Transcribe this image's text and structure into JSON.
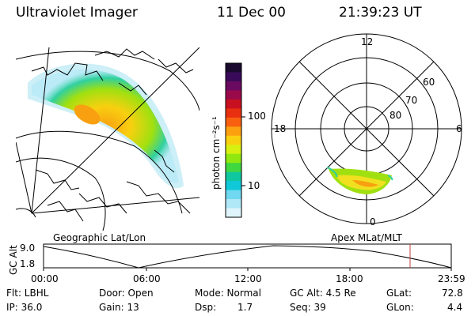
{
  "header": {
    "title": "Ultraviolet Imager",
    "date": "11 Dec 00",
    "time": "21:39:23 UT"
  },
  "colorbar": {
    "unit_label": "photon cm⁻²s⁻¹",
    "ticks": [
      "100",
      "10"
    ],
    "colors": [
      "#1a0a2e",
      "#3a0a5a",
      "#6a0a60",
      "#9a0a4a",
      "#c81020",
      "#e83010",
      "#f86010",
      "#fca010",
      "#f8d010",
      "#d8f010",
      "#90e810",
      "#40d840",
      "#10c8a0",
      "#10c8d8",
      "#70d8f0",
      "#b0e8f8",
      "#e0f4fc"
    ]
  },
  "panels": {
    "left_label": "Geographic Lat/Lon",
    "right_label": "Apex MLat/MLT"
  },
  "polar": {
    "clock_labels": {
      "top": "12",
      "left": "18",
      "right": "6",
      "bottom": "0"
    },
    "lat_labels": [
      "60",
      "70",
      "80"
    ]
  },
  "altitude": {
    "axis_label": "GC Alt",
    "y_ticks": [
      "9.0",
      "1.8"
    ],
    "x_ticks": [
      "00:00",
      "06:00",
      "12:00",
      "18:00",
      "23:59"
    ],
    "marker_color": "#c04040"
  },
  "info": {
    "flt": "Flt: LBHL",
    "door": "Door: Open",
    "mode": "Mode: Normal",
    "gcalt": "GC Alt: 4.5 Re",
    "glat_label": "GLat:",
    "glat_value": "72.8",
    "ip": "IP: 36.0",
    "gain": "Gain: 13",
    "dsp_label": "Dsp:",
    "dsp_value": "1.7",
    "seq": "Seq: 39",
    "glon_label": "GLon:",
    "glon_value": "4.4"
  }
}
